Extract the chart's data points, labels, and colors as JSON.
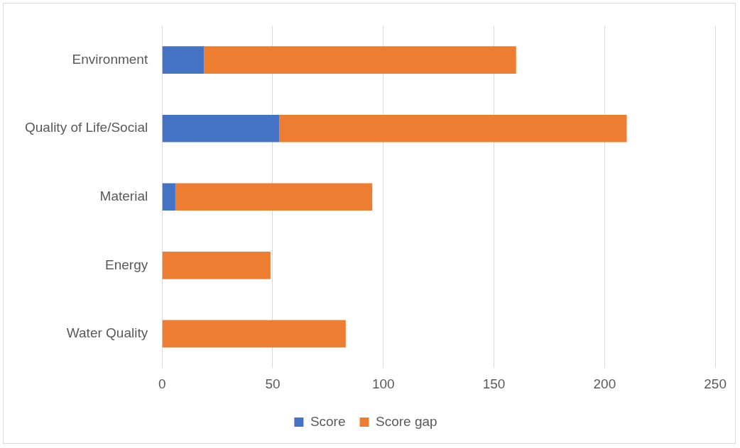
{
  "chart_data": {
    "type": "bar",
    "orientation": "horizontal",
    "stacked": true,
    "categories": [
      "Environment",
      "Quality of Life/Social",
      "Material",
      "Energy",
      "Water Quality"
    ],
    "series": [
      {
        "name": "Score",
        "color": "#4472c4",
        "values": [
          19,
          53,
          6,
          0,
          0
        ]
      },
      {
        "name": "Score gap",
        "color": "#ed7d31",
        "values": [
          141,
          157,
          89,
          49,
          83
        ]
      }
    ],
    "xlim": [
      0,
      250
    ],
    "xticks": [
      0,
      50,
      100,
      150,
      200,
      250
    ],
    "grid": "x",
    "legend": "bottom"
  }
}
